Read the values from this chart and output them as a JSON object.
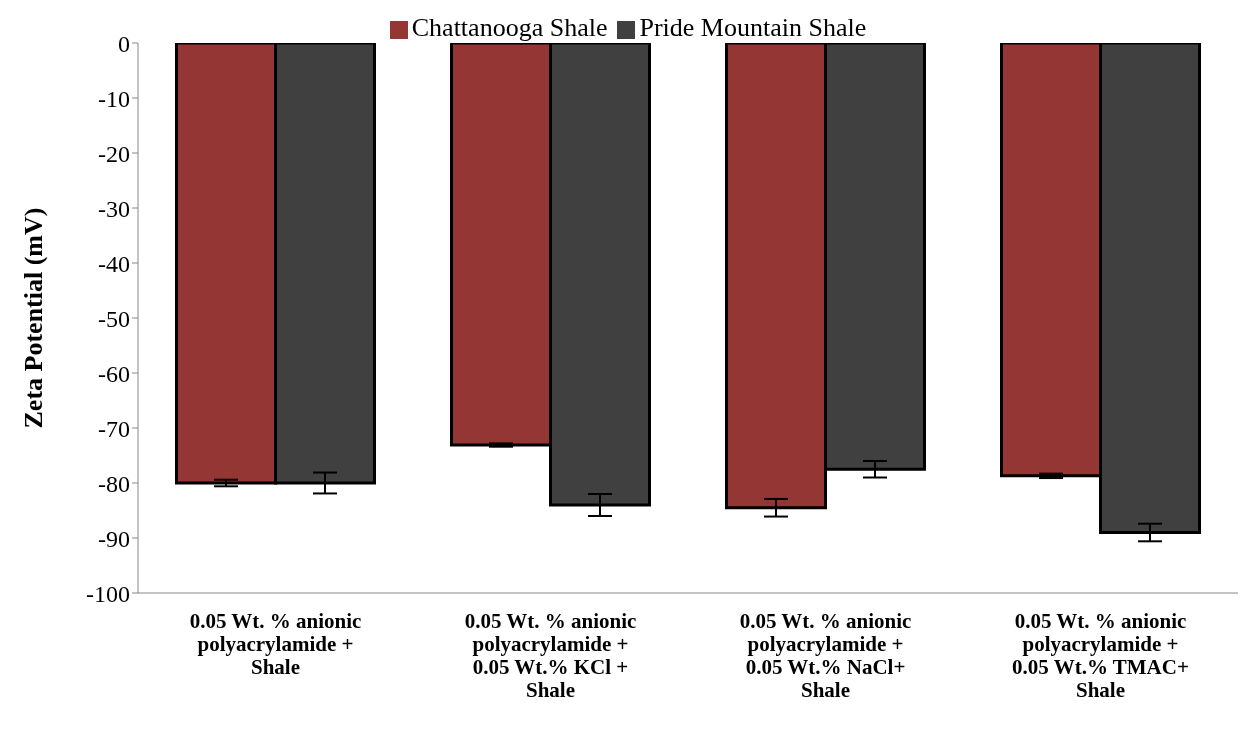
{
  "chart_data": {
    "type": "bar",
    "ylabel": "Zeta Potential (mV)",
    "categories": [
      "0.05 Wt. % anionic\npolyacrylamide +\nShale",
      "0.05 Wt. % anionic\npolyacrylamide +\n0.05 Wt.% KCl +\nShale",
      "0.05 Wt. % anionic\npolyacrylamide +\n0.05 Wt.% NaCl+\nShale",
      "0.05 Wt. % anionic\npolyacrylamide +\n0.05 Wt.% TMAC+\nShale"
    ],
    "series": [
      {
        "name": "Chattanooga Shale",
        "color": "#943634",
        "values": [
          -80,
          -73.1,
          -84.5,
          -78.7
        ],
        "errors": [
          0.6,
          0.3,
          1.6,
          0.4
        ]
      },
      {
        "name": "Pride Mountain Shale",
        "color": "#404040",
        "values": [
          -80,
          -84,
          -77.5,
          -89
        ],
        "errors": [
          1.9,
          2,
          1.5,
          1.6
        ]
      }
    ],
    "ylim": [
      -100,
      0
    ],
    "yticks": [
      -100,
      -90,
      -80,
      -70,
      -60,
      -50,
      -40,
      -30,
      -20,
      -10,
      0
    ],
    "grid": false,
    "legend": "top"
  }
}
